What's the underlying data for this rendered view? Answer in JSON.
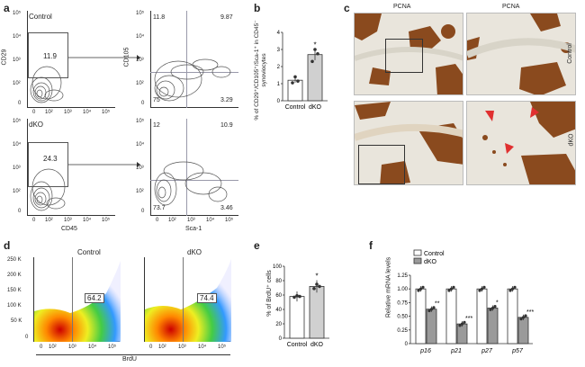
{
  "panels": {
    "a": {
      "label": "a",
      "top_left": {
        "condition": "Control",
        "ylabel": "CD29",
        "gate": "11.9",
        "ticks_y": [
          "10⁵",
          "10⁴",
          "10³",
          "10²",
          "0"
        ],
        "ticks_x": [
          "0",
          "10²",
          "10³",
          "10⁴",
          "10⁵"
        ]
      },
      "top_right": {
        "ylabel": "CD105",
        "q_ul": "11.8",
        "q_ur": "9.87",
        "q_ll": "75",
        "q_lr": "3.29",
        "ticks_y": [
          "10⁵",
          "10⁴",
          "10³",
          "10²",
          "0"
        ]
      },
      "bottom_left": {
        "condition": "dKO",
        "gate": "24.3",
        "xlabel": "CD45",
        "ticks_y": [
          "10⁵",
          "10⁴",
          "10³",
          "10²",
          "0"
        ],
        "ticks_x": [
          "0",
          "10²",
          "10³",
          "10⁴",
          "10⁵"
        ]
      },
      "bottom_right": {
        "q_ul": "12",
        "q_ur": "10.9",
        "q_ll": "73.7",
        "q_lr": "3.46",
        "xlabel": "Sca-1",
        "ticks_y": [
          "10⁵",
          "10⁴",
          "10³",
          "10²",
          "0"
        ],
        "ticks_x": [
          "0",
          "10²",
          "10³",
          "10⁴",
          "10⁵"
        ]
      }
    },
    "b": {
      "label": "b",
      "ylabel": "% of CD29⁺/CD105⁺/Sca-1⁺ in CD45⁻ synoviocytes",
      "ticks": [
        "0",
        "1",
        "2",
        "3",
        "4"
      ],
      "star": "*"
    },
    "c": {
      "label": "c",
      "col1": "PCNA",
      "col2": "PCNA",
      "row1": "Control",
      "row2": "dKO"
    },
    "d": {
      "label": "d",
      "left_title": "Control",
      "right_title": "dKO",
      "left_gate": "64.2",
      "right_gate": "74.4",
      "xlabel": "BrdU",
      "ticks_y": [
        "250 K",
        "200 K",
        "150 K",
        "100 K",
        "50 K",
        "0"
      ],
      "ticks_x": [
        "0",
        "10²",
        "10³",
        "10⁴",
        "10⁵"
      ]
    },
    "e": {
      "label": "e",
      "ylabel": "% of BrdU⁺ cells",
      "ticks": [
        "0",
        "20",
        "40",
        "60",
        "80",
        "100"
      ],
      "star": "*"
    },
    "f": {
      "label": "f",
      "ylabel": "Relative mRNA levels",
      "ticks": [
        "0",
        "0.25",
        "0.50",
        "0.75",
        "1.00",
        "1.25"
      ],
      "legend": [
        "Control",
        "dKO"
      ],
      "stars": [
        "**",
        "***",
        "*",
        "***"
      ]
    }
  },
  "chart_data": [
    {
      "type": "bar",
      "panel": "b",
      "categories": [
        "Control",
        "dKO"
      ],
      "values": [
        1.2,
        2.7
      ],
      "ylim": [
        0,
        4
      ],
      "ylabel": "% of CD29⁺/CD105⁺/Sca-1⁺ in CD45⁻ synoviocytes",
      "points": [
        [
          1.05,
          1.4,
          1.15
        ],
        [
          2.3,
          3.0,
          2.75
        ]
      ]
    },
    {
      "type": "bar",
      "panel": "e",
      "categories": [
        "Control",
        "dKO"
      ],
      "values": [
        58,
        72
      ],
      "ylim": [
        0,
        100
      ],
      "ylabel": "% of BrdU⁺ cells",
      "points": [
        [
          57,
          59,
          58
        ],
        [
          69,
          75,
          72
        ]
      ]
    },
    {
      "type": "bar",
      "panel": "f",
      "categories": [
        "p16",
        "p21",
        "p27",
        "p57"
      ],
      "ylim": [
        0,
        1.25
      ],
      "ylabel": "Relative mRNA levels",
      "series": [
        {
          "name": "Control",
          "values": [
            1.0,
            1.0,
            1.0,
            1.0
          ],
          "color": "#ffffff"
        },
        {
          "name": "dKO",
          "values": [
            0.63,
            0.36,
            0.65,
            0.48
          ],
          "color": "#9a9a9a"
        }
      ]
    }
  ]
}
